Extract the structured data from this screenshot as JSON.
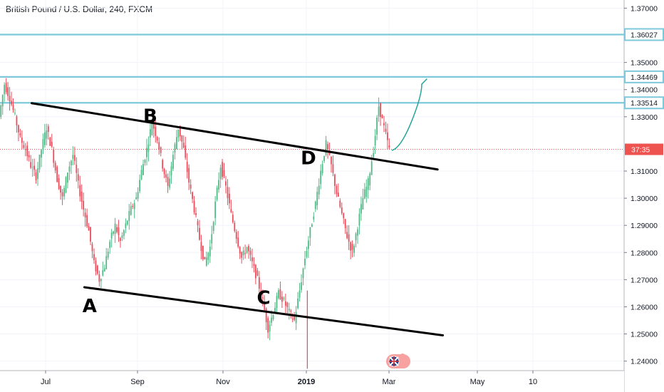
{
  "header": {
    "title": "British Pound / U.S. Dollar, 240, FXCM"
  },
  "colors": {
    "up": "#53b987",
    "down": "#eb4d5c",
    "level_line": "#7ec8dc",
    "trend_line": "#000000",
    "projection": "#26a69a",
    "price_tag": "#ef5350",
    "axis_text": "#131722",
    "grid": "#f0f3fa"
  },
  "chart_data": {
    "type": "candlestick",
    "y_axis": {
      "range": [
        1.2365,
        1.373
      ],
      "ticks": [
        "1.37000",
        "1.35000",
        "1.34000",
        "1.33000",
        "1.31000",
        "1.30000",
        "1.29000",
        "1.28000",
        "1.27000",
        "1.26000",
        "1.25000",
        "1.24000"
      ],
      "tick_values": [
        1.37,
        1.35,
        1.34,
        1.33,
        1.31,
        1.3,
        1.29,
        1.28,
        1.27,
        1.26,
        1.25,
        1.24
      ]
    },
    "x_axis": {
      "ticks": [
        {
          "label": "Jul",
          "bold": false
        },
        {
          "label": "Sep",
          "bold": false
        },
        {
          "label": "Nov",
          "bold": false
        },
        {
          "label": "2019",
          "bold": true
        },
        {
          "label": "Mar",
          "bold": false
        },
        {
          "label": "May",
          "bold": false
        },
        {
          "label": "10",
          "bold": false
        }
      ]
    },
    "horizontal_levels": [
      {
        "label": "1.36027",
        "value": 1.36027
      },
      {
        "label": "1.34469",
        "value": 1.34469
      },
      {
        "label": "1.33514",
        "value": 1.33514
      }
    ],
    "current_price": {
      "value": 1.318,
      "tag": "37:35"
    },
    "price_path": [
      1.33,
      1.342,
      1.337,
      1.33,
      1.322,
      1.318,
      1.312,
      1.308,
      1.318,
      1.326,
      1.318,
      1.307,
      1.3,
      1.31,
      1.316,
      1.305,
      1.296,
      1.288,
      1.276,
      1.27,
      1.275,
      1.284,
      1.29,
      1.284,
      1.29,
      1.296,
      1.3,
      1.31,
      1.318,
      1.328,
      1.322,
      1.312,
      1.304,
      1.316,
      1.326,
      1.318,
      1.306,
      1.296,
      1.285,
      1.276,
      1.282,
      1.298,
      1.312,
      1.304,
      1.294,
      1.286,
      1.278,
      1.282,
      1.276,
      1.27,
      1.262,
      1.252,
      1.258,
      1.265,
      1.262,
      1.258,
      1.255,
      1.266,
      1.278,
      1.288,
      1.298,
      1.31,
      1.32,
      1.312,
      1.302,
      1.294,
      1.286,
      1.28,
      1.29,
      1.3,
      1.306,
      1.318,
      1.334,
      1.326,
      1.318
    ],
    "trend_lines": [
      {
        "name": "upper",
        "from": {
          "path_index": 6,
          "value": 1.335
        },
        "to": {
          "path_index": 83,
          "value": 1.3106
        }
      },
      {
        "name": "lower",
        "from": {
          "path_index": 16,
          "value": 1.2672
        },
        "to": {
          "path_index": 84,
          "value": 1.2495
        }
      }
    ],
    "projection": {
      "points": [
        {
          "path_index": 74.3,
          "value": 1.3176
        },
        {
          "path_index": 76.0,
          "value": 1.3195
        },
        {
          "path_index": 78.0,
          "value": 1.328
        },
        {
          "path_index": 80.0,
          "value": 1.342
        },
        {
          "path_index": 81.0,
          "value": 1.344
        }
      ]
    },
    "point_labels": [
      {
        "label": "A",
        "path_index": 17.0,
        "value": 1.258
      },
      {
        "label": "B",
        "path_index": 28.5,
        "value": 1.328
      },
      {
        "label": "C",
        "path_index": 50.0,
        "value": 1.261
      },
      {
        "label": "D",
        "path_index": 58.5,
        "value": 1.3125
      }
    ]
  }
}
